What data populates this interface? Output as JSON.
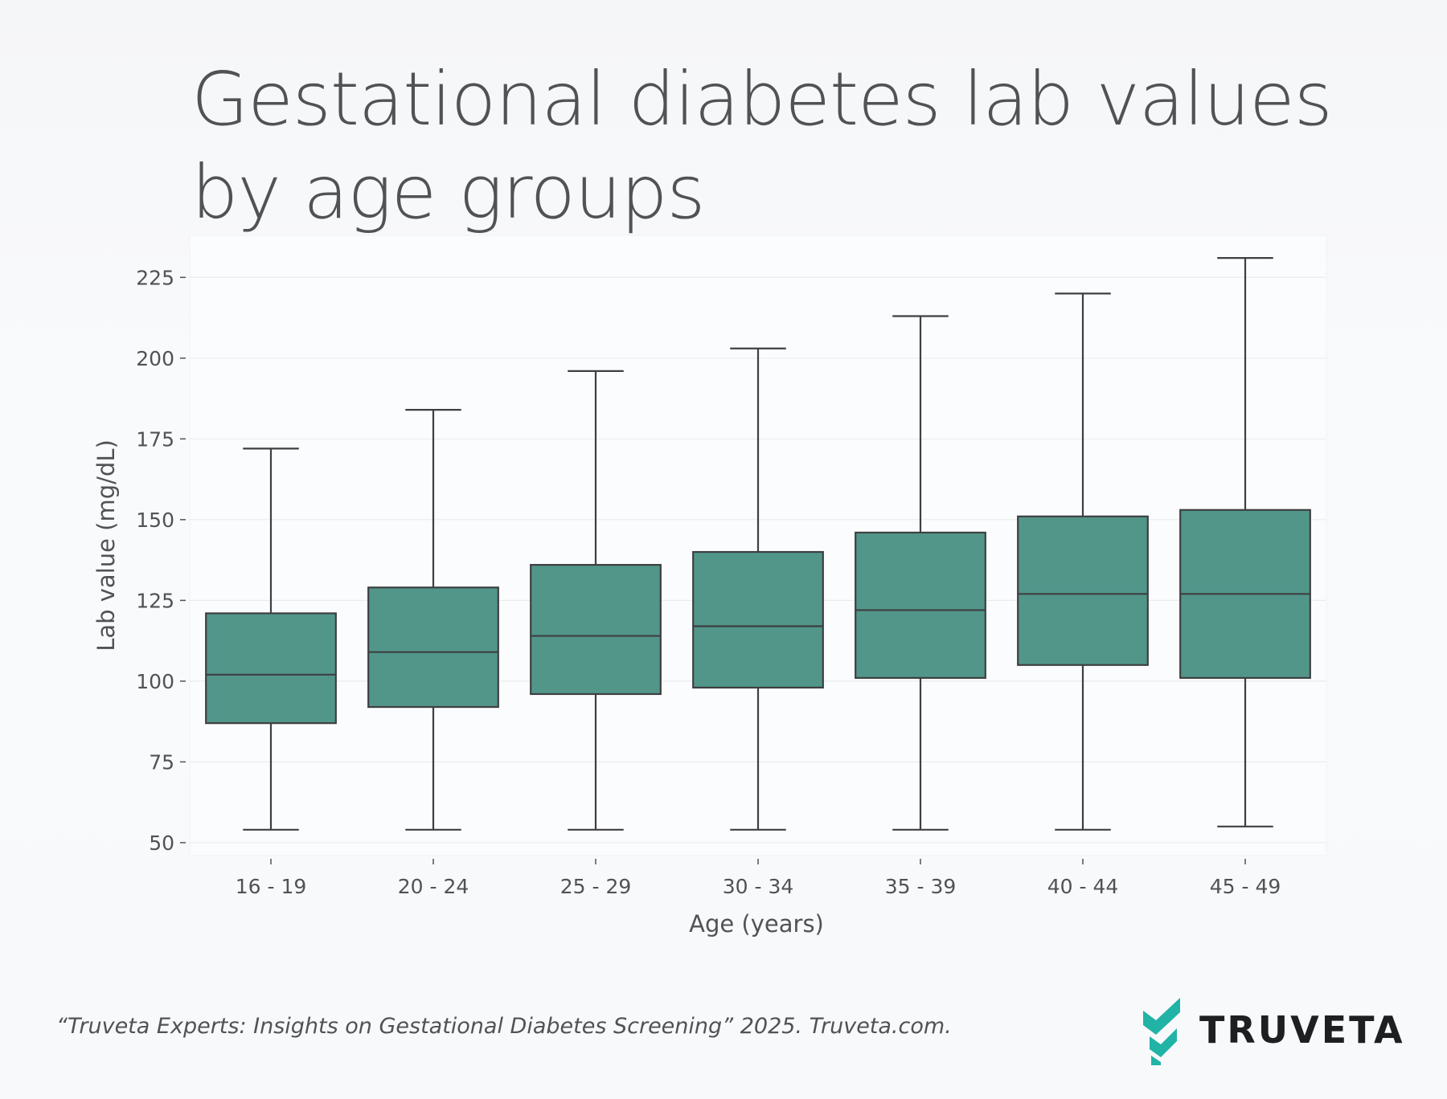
{
  "title_lines": [
    "Gestational diabetes lab values",
    "by age groups"
  ],
  "source": "“Truveta Experts: Insights on Gestational Diabetes Screening” 2025. Truveta.com.",
  "brand": {
    "name": "TRUVETA",
    "logo_icon": "truveta-chevron-logo-icon",
    "accent": "#21b3a6"
  },
  "colors": {
    "box_fill": "#52968a",
    "box_stroke": "#3e3f41",
    "grid": "#ececec",
    "text": "#505255"
  },
  "chart_data": {
    "type": "box",
    "title": "Gestational diabetes lab values by age groups",
    "xlabel": "Age (years)",
    "ylabel": "Lab value (mg/dL)",
    "ylim": [
      46,
      238
    ],
    "yticks": [
      50,
      75,
      100,
      125,
      150,
      175,
      200,
      225
    ],
    "grid": true,
    "categories": [
      "16 - 19",
      "20 - 24",
      "25 - 29",
      "30 - 34",
      "35 - 39",
      "40 - 44",
      "45 - 49"
    ],
    "boxes": [
      {
        "whisker_low": 54,
        "q1": 87,
        "median": 102,
        "q3": 121,
        "whisker_high": 172
      },
      {
        "whisker_low": 54,
        "q1": 92,
        "median": 109,
        "q3": 129,
        "whisker_high": 184
      },
      {
        "whisker_low": 54,
        "q1": 96,
        "median": 114,
        "q3": 136,
        "whisker_high": 196
      },
      {
        "whisker_low": 54,
        "q1": 98,
        "median": 117,
        "q3": 140,
        "whisker_high": 203
      },
      {
        "whisker_low": 54,
        "q1": 101,
        "median": 122,
        "q3": 146,
        "whisker_high": 213
      },
      {
        "whisker_low": 54,
        "q1": 105,
        "median": 127,
        "q3": 151,
        "whisker_high": 220
      },
      {
        "whisker_low": 55,
        "q1": 101,
        "median": 127,
        "q3": 153,
        "whisker_high": 231
      }
    ]
  }
}
